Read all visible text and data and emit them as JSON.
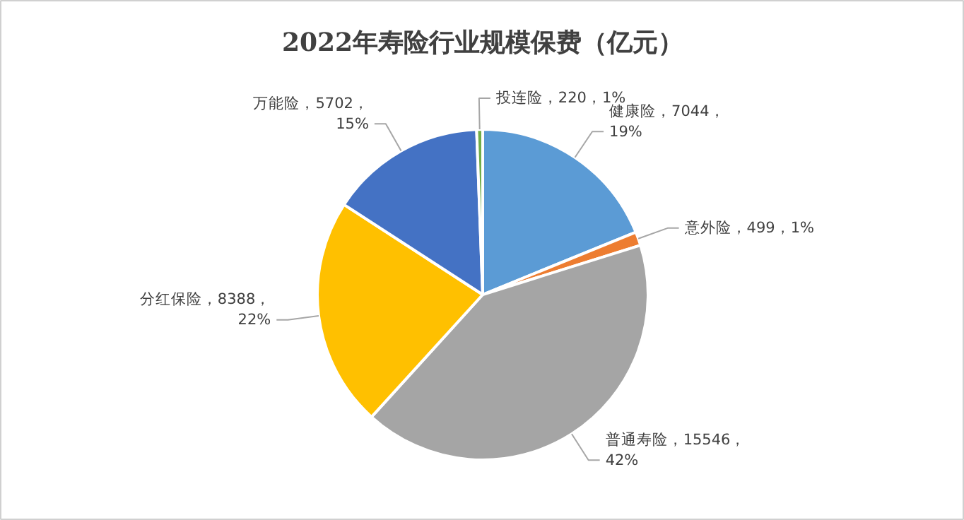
{
  "chart_data": {
    "type": "pie",
    "title": "2022年寿险行业规模保费（亿元）",
    "categories": [
      "健康险",
      "意外险",
      "普通寿险",
      "分红保险",
      "万能险",
      "投连险"
    ],
    "values": [
      7044,
      499,
      15546,
      8388,
      5702,
      220
    ],
    "colors": [
      "#5b9bd5",
      "#ed7d31",
      "#a5a5a5",
      "#ffc000",
      "#4472c4",
      "#70ad47"
    ],
    "value_labels": [
      "7044，\n19%",
      "499，1%",
      "15546，\n42%",
      "8388，\n22%",
      "5702，\n15%",
      "220，1%"
    ]
  }
}
